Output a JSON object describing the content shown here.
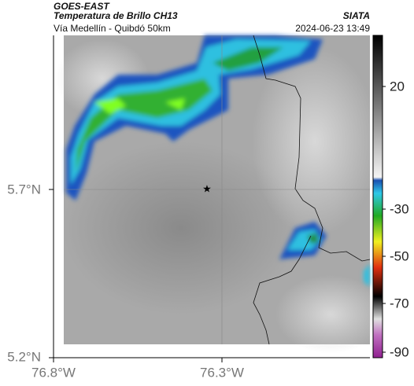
{
  "header": {
    "source": "GOES-EAST",
    "product": "Temperatura de Brillo CH13",
    "region": "Vía Medellín - Quibdó 50km",
    "agency": "SIATA",
    "timestamp": "2024-06-23 13:49"
  },
  "axes": {
    "lat_ticks": [
      "5.7°N",
      "5.2°N"
    ],
    "lon_ticks": [
      "76.8°W",
      "76.3°W"
    ]
  },
  "colorbar": {
    "ticks": [
      20,
      -30,
      -50,
      -70,
      -90
    ]
  }
}
